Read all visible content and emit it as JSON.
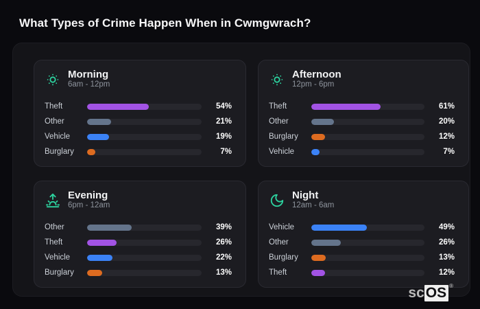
{
  "page": {
    "title": "What Types of Crime Happen When in Cwmgwrach?"
  },
  "colors": {
    "accent": "#2dd4a0",
    "category": {
      "theft": "#a253e4",
      "other": "#64748b",
      "vehicle": "#3b82f6",
      "burglary": "#dd6b20"
    },
    "page_background": "#0a0a0e",
    "panel_background": "#141418",
    "card_background": "#1c1c21",
    "bar_track": "#27272d"
  },
  "chart_data": [
    {
      "type": "bar",
      "orientation": "horizontal",
      "title": "Morning",
      "subtitle": "6am - 12pm",
      "icon": "sun-icon",
      "unit": "%",
      "xlim": [
        0,
        100
      ],
      "categories": [
        "Theft",
        "Other",
        "Vehicle",
        "Burglary"
      ],
      "values": [
        54,
        21,
        19,
        7
      ],
      "value_labels": [
        "54%",
        "21%",
        "19%",
        "7%"
      ]
    },
    {
      "type": "bar",
      "orientation": "horizontal",
      "title": "Afternoon",
      "subtitle": "12pm - 6pm",
      "icon": "sun-icon",
      "unit": "%",
      "xlim": [
        0,
        100
      ],
      "categories": [
        "Theft",
        "Other",
        "Burglary",
        "Vehicle"
      ],
      "values": [
        61,
        20,
        12,
        7
      ],
      "value_labels": [
        "61%",
        "20%",
        "12%",
        "7%"
      ]
    },
    {
      "type": "bar",
      "orientation": "horizontal",
      "title": "Evening",
      "subtitle": "6pm - 12am",
      "icon": "sunrise-icon",
      "unit": "%",
      "xlim": [
        0,
        100
      ],
      "categories": [
        "Other",
        "Theft",
        "Vehicle",
        "Burglary"
      ],
      "values": [
        39,
        26,
        22,
        13
      ],
      "value_labels": [
        "39%",
        "26%",
        "22%",
        "13%"
      ]
    },
    {
      "type": "bar",
      "orientation": "horizontal",
      "title": "Night",
      "subtitle": "12am - 6am",
      "icon": "moon-icon",
      "unit": "%",
      "xlim": [
        0,
        100
      ],
      "categories": [
        "Vehicle",
        "Other",
        "Burglary",
        "Theft"
      ],
      "values": [
        49,
        26,
        13,
        12
      ],
      "value_labels": [
        "49%",
        "26%",
        "13%",
        "12%"
      ]
    }
  ],
  "watermark": {
    "prefix": "sc",
    "suffix": "OS",
    "registered": "®"
  }
}
